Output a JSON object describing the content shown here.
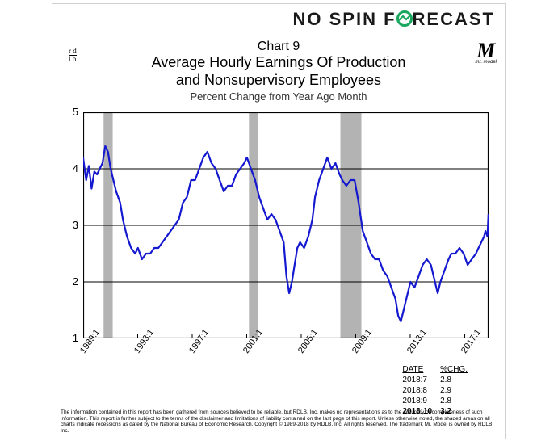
{
  "brand": {
    "left": "NO SPIN",
    "right": "RECAST",
    "full": "NO SPIN FORECAST"
  },
  "logos": {
    "rdb_top": "r d",
    "rdb_bot": "l b",
    "mrmodel": "M",
    "mrmodel_sub": "mr. model"
  },
  "titles": {
    "chart_num": "Chart 9",
    "main1": "Average Hourly Earnings Of Production",
    "main2": "and Nonsupervisory Employees",
    "sub": "Percent Change from Year Ago Month"
  },
  "chart": {
    "type": "line",
    "xlim": [
      1989.0833,
      2018.8333
    ],
    "ylim": [
      1,
      5
    ],
    "yticks": [
      1,
      2,
      3,
      4,
      5
    ],
    "xticks": [
      1989.0833,
      1993.0833,
      1997.0833,
      2001.0833,
      2005.0833,
      2009.0833,
      2013.0833,
      2017.0833
    ],
    "xtick_labels": [
      "1989:1",
      "1993:1",
      "1997:1",
      "2001:1",
      "2005:1",
      "2009:1",
      "2013:1",
      "2017:1"
    ],
    "line_color": "#1418cf",
    "line_width": 2.2,
    "axis_color": "#000000",
    "grid_color": "#000000",
    "recession_color": "#b3b3b3",
    "background_color": "#ffffff",
    "tick_fontsize": 13,
    "recessions": [
      {
        "start": 1990.58,
        "end": 1991.25
      },
      {
        "start": 2001.25,
        "end": 2001.92
      },
      {
        "start": 2007.96,
        "end": 2009.5
      }
    ],
    "series": [
      [
        1989.08,
        4.2
      ],
      [
        1989.3,
        3.8
      ],
      [
        1989.5,
        4.05
      ],
      [
        1989.7,
        3.65
      ],
      [
        1989.9,
        3.95
      ],
      [
        1990.1,
        3.9
      ],
      [
        1990.3,
        4.0
      ],
      [
        1990.5,
        4.1
      ],
      [
        1990.7,
        4.4
      ],
      [
        1990.9,
        4.3
      ],
      [
        1991.1,
        4.0
      ],
      [
        1991.3,
        3.8
      ],
      [
        1991.5,
        3.6
      ],
      [
        1991.8,
        3.4
      ],
      [
        1992.0,
        3.1
      ],
      [
        1992.3,
        2.8
      ],
      [
        1992.6,
        2.6
      ],
      [
        1992.9,
        2.5
      ],
      [
        1993.1,
        2.6
      ],
      [
        1993.4,
        2.4
      ],
      [
        1993.7,
        2.5
      ],
      [
        1994.0,
        2.5
      ],
      [
        1994.3,
        2.6
      ],
      [
        1994.6,
        2.6
      ],
      [
        1994.9,
        2.7
      ],
      [
        1995.2,
        2.8
      ],
      [
        1995.5,
        2.9
      ],
      [
        1995.8,
        3.0
      ],
      [
        1996.1,
        3.1
      ],
      [
        1996.4,
        3.4
      ],
      [
        1996.7,
        3.5
      ],
      [
        1997.0,
        3.8
      ],
      [
        1997.3,
        3.8
      ],
      [
        1997.6,
        4.0
      ],
      [
        1997.9,
        4.2
      ],
      [
        1998.2,
        4.3
      ],
      [
        1998.5,
        4.1
      ],
      [
        1998.8,
        4.0
      ],
      [
        1999.1,
        3.8
      ],
      [
        1999.4,
        3.6
      ],
      [
        1999.7,
        3.7
      ],
      [
        2000.0,
        3.7
      ],
      [
        2000.3,
        3.9
      ],
      [
        2000.6,
        4.0
      ],
      [
        2000.9,
        4.1
      ],
      [
        2001.1,
        4.2
      ],
      [
        2001.4,
        4.0
      ],
      [
        2001.7,
        3.8
      ],
      [
        2002.0,
        3.5
      ],
      [
        2002.3,
        3.3
      ],
      [
        2002.6,
        3.1
      ],
      [
        2002.9,
        3.2
      ],
      [
        2003.2,
        3.1
      ],
      [
        2003.5,
        2.9
      ],
      [
        2003.8,
        2.7
      ],
      [
        2004.0,
        2.1
      ],
      [
        2004.2,
        1.8
      ],
      [
        2004.4,
        2.0
      ],
      [
        2004.6,
        2.3
      ],
      [
        2004.8,
        2.6
      ],
      [
        2005.0,
        2.7
      ],
      [
        2005.3,
        2.6
      ],
      [
        2005.6,
        2.8
      ],
      [
        2005.9,
        3.1
      ],
      [
        2006.1,
        3.5
      ],
      [
        2006.4,
        3.8
      ],
      [
        2006.7,
        4.0
      ],
      [
        2007.0,
        4.2
      ],
      [
        2007.3,
        4.0
      ],
      [
        2007.6,
        4.1
      ],
      [
        2007.9,
        3.9
      ],
      [
        2008.1,
        3.8
      ],
      [
        2008.4,
        3.7
      ],
      [
        2008.7,
        3.8
      ],
      [
        2009.0,
        3.8
      ],
      [
        2009.3,
        3.4
      ],
      [
        2009.6,
        2.9
      ],
      [
        2009.9,
        2.7
      ],
      [
        2010.2,
        2.5
      ],
      [
        2010.5,
        2.4
      ],
      [
        2010.8,
        2.4
      ],
      [
        2011.1,
        2.2
      ],
      [
        2011.4,
        2.1
      ],
      [
        2011.7,
        1.9
      ],
      [
        2012.0,
        1.7
      ],
      [
        2012.2,
        1.4
      ],
      [
        2012.4,
        1.3
      ],
      [
        2012.6,
        1.5
      ],
      [
        2012.9,
        1.8
      ],
      [
        2013.1,
        2.0
      ],
      [
        2013.4,
        1.9
      ],
      [
        2013.7,
        2.1
      ],
      [
        2014.0,
        2.3
      ],
      [
        2014.3,
        2.4
      ],
      [
        2014.6,
        2.3
      ],
      [
        2014.9,
        2.0
      ],
      [
        2015.1,
        1.8
      ],
      [
        2015.3,
        2.0
      ],
      [
        2015.6,
        2.2
      ],
      [
        2015.9,
        2.4
      ],
      [
        2016.1,
        2.5
      ],
      [
        2016.4,
        2.5
      ],
      [
        2016.7,
        2.6
      ],
      [
        2017.0,
        2.5
      ],
      [
        2017.3,
        2.3
      ],
      [
        2017.6,
        2.4
      ],
      [
        2017.9,
        2.5
      ],
      [
        2018.1,
        2.6
      ],
      [
        2018.3,
        2.7
      ],
      [
        2018.5,
        2.8
      ],
      [
        2018.6,
        2.9
      ],
      [
        2018.75,
        2.8
      ],
      [
        2018.83,
        3.2
      ]
    ]
  },
  "table": {
    "headers": [
      "DATE",
      "%CHG."
    ],
    "rows": [
      [
        "2018:7",
        "2.8"
      ],
      [
        "2018:8",
        "2.9"
      ],
      [
        "2018:9",
        "2.8"
      ],
      [
        "2018:10",
        "3.2"
      ]
    ]
  },
  "footnote": "The information contained in this report has been gathered from sources believed to be reliable, but RDLB, Inc. makes no representations as to the accuracy or completeness of such information. This report is further subject to the terms of the disclaimer and limitations of liability contained on the last page of this report. Unless otherwise noted, the shaded areas on all charts indicate recessions as dated by the National Bureau of Economic Research. Copyright © 1989-2018 by RDLB, Inc. All rights reserved. The trademark Mr. Model is owned by RDLB, Inc."
}
